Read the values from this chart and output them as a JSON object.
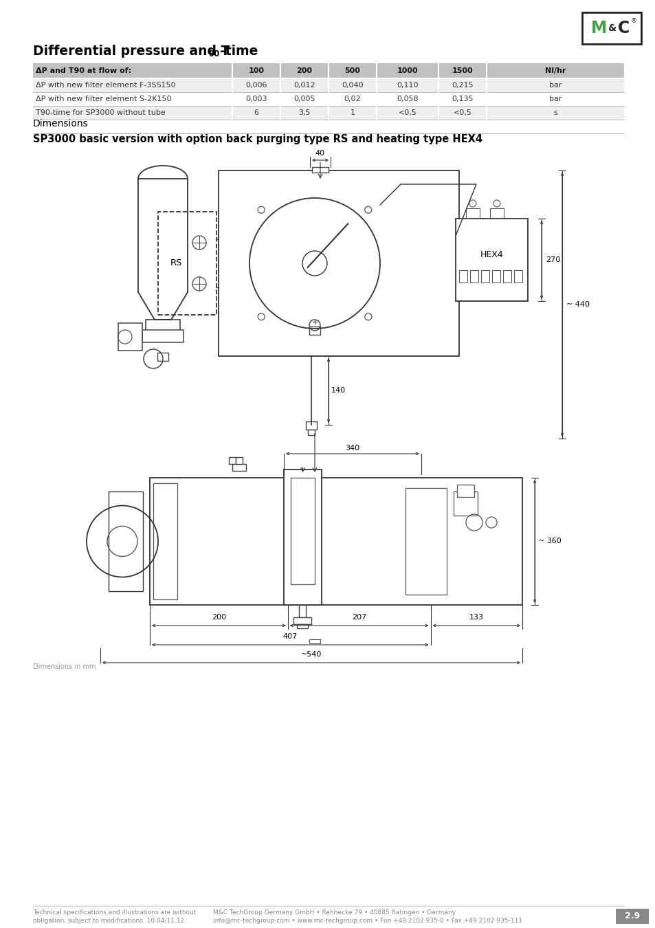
{
  "page_bg": "#ffffff",
  "logo_color": "#4a9e4a",
  "title_main": "Differential pressure and T",
  "title_sub": "90",
  "title_end": "-time",
  "section1": "Dimensions",
  "section2": "SP3000 basic version with option back purging type RS and heating type HEX4",
  "table_header": [
    "ΔP and T90 at flow of:",
    "100",
    "200",
    "500",
    "1000",
    "1500",
    "Nl/hr"
  ],
  "table_rows": [
    [
      "ΔP with new filter element F-3SS150",
      "0,006",
      "0,012",
      "0,040",
      "0,110",
      "0,215",
      "bar"
    ],
    [
      "ΔP with new filter element S-2K150",
      "0,003",
      "0,005",
      "0,02",
      "0,058",
      "0,135",
      "bar"
    ],
    [
      "T90-time for SP3000 without tube",
      "6",
      "3,5",
      "1",
      "<0,5",
      "<0,5",
      "s"
    ]
  ],
  "table_header_bg": "#c0c0c0",
  "table_row_bgs": [
    "#eeeeee",
    "#ffffff",
    "#eeeeee"
  ],
  "footer_left1": "Technical specifications and illustrations are without",
  "footer_left2": "obligation, subject to modifications. 10.04/11.12",
  "footer_center1": "M&C TechGroup Germany GmbH • Rehhecke 79 • 40885 Ratingen • Germany",
  "footer_center2": "info@mc-techgroup.com • www.mc-techgroup.com • Fon +49 2102 935-0 • Fax +49 2102 935-111",
  "footer_page": "2.9",
  "dim_note": "Dimensions in mm"
}
